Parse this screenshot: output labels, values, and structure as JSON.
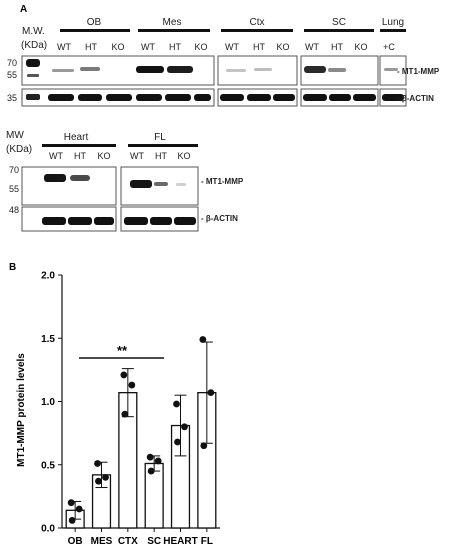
{
  "panel_a": {
    "label": "A",
    "mw_label_top": "M.W.",
    "mw_unit_top": "(KDa)",
    "mw_label_bottom": "MW",
    "mw_unit_bottom": "(KDa)",
    "tissues_top": [
      "OB",
      "Mes",
      "Ctx",
      "SC",
      "Lung"
    ],
    "lanes_top": [
      [
        "WT",
        "HT",
        "KO"
      ],
      [
        "WT",
        "HT",
        "KO"
      ],
      [
        "WT",
        "HT",
        "KO"
      ],
      [
        "WT",
        "HT",
        "KO"
      ],
      [
        "+C"
      ]
    ],
    "tissues_bottom": [
      "Heart",
      "FL"
    ],
    "lanes_bottom": [
      [
        "WT",
        "HT",
        "KO"
      ],
      [
        "WT",
        "HT",
        "KO"
      ]
    ],
    "markers_top": [
      "70",
      "55",
      "35"
    ],
    "markers_bottom": [
      "70",
      "55",
      "48"
    ],
    "band_labels": {
      "mt1_top": "- MT1-MMP",
      "actin_top": "- β-ACTIN",
      "mt1_bottom": "- MT1-MMP",
      "actin_bottom": "- β-ACTIN"
    }
  },
  "panel_b": {
    "label": "B",
    "significance": "**"
  },
  "chart_data": {
    "type": "bar",
    "categories": [
      "OB",
      "MES",
      "CTX",
      "SC",
      "HEART",
      "FL"
    ],
    "values": [
      0.14,
      0.42,
      1.07,
      0.51,
      0.81,
      1.07
    ],
    "error": [
      0.07,
      0.1,
      0.19,
      0.06,
      0.24,
      0.4
    ],
    "points": [
      [
        0.2,
        0.15,
        0.06
      ],
      [
        0.51,
        0.4,
        0.37
      ],
      [
        1.21,
        1.13,
        0.9
      ],
      [
        0.56,
        0.53,
        0.45
      ],
      [
        0.98,
        0.8,
        0.68
      ],
      [
        1.49,
        1.07,
        0.65
      ]
    ],
    "title": "",
    "xlabel": "",
    "ylabel": "MT1-MMP protein levels",
    "ylim": [
      0,
      2.0
    ],
    "yticks": [
      "0.0",
      "0.5",
      "1.0",
      "1.5",
      "2.0"
    ],
    "grid": false
  }
}
